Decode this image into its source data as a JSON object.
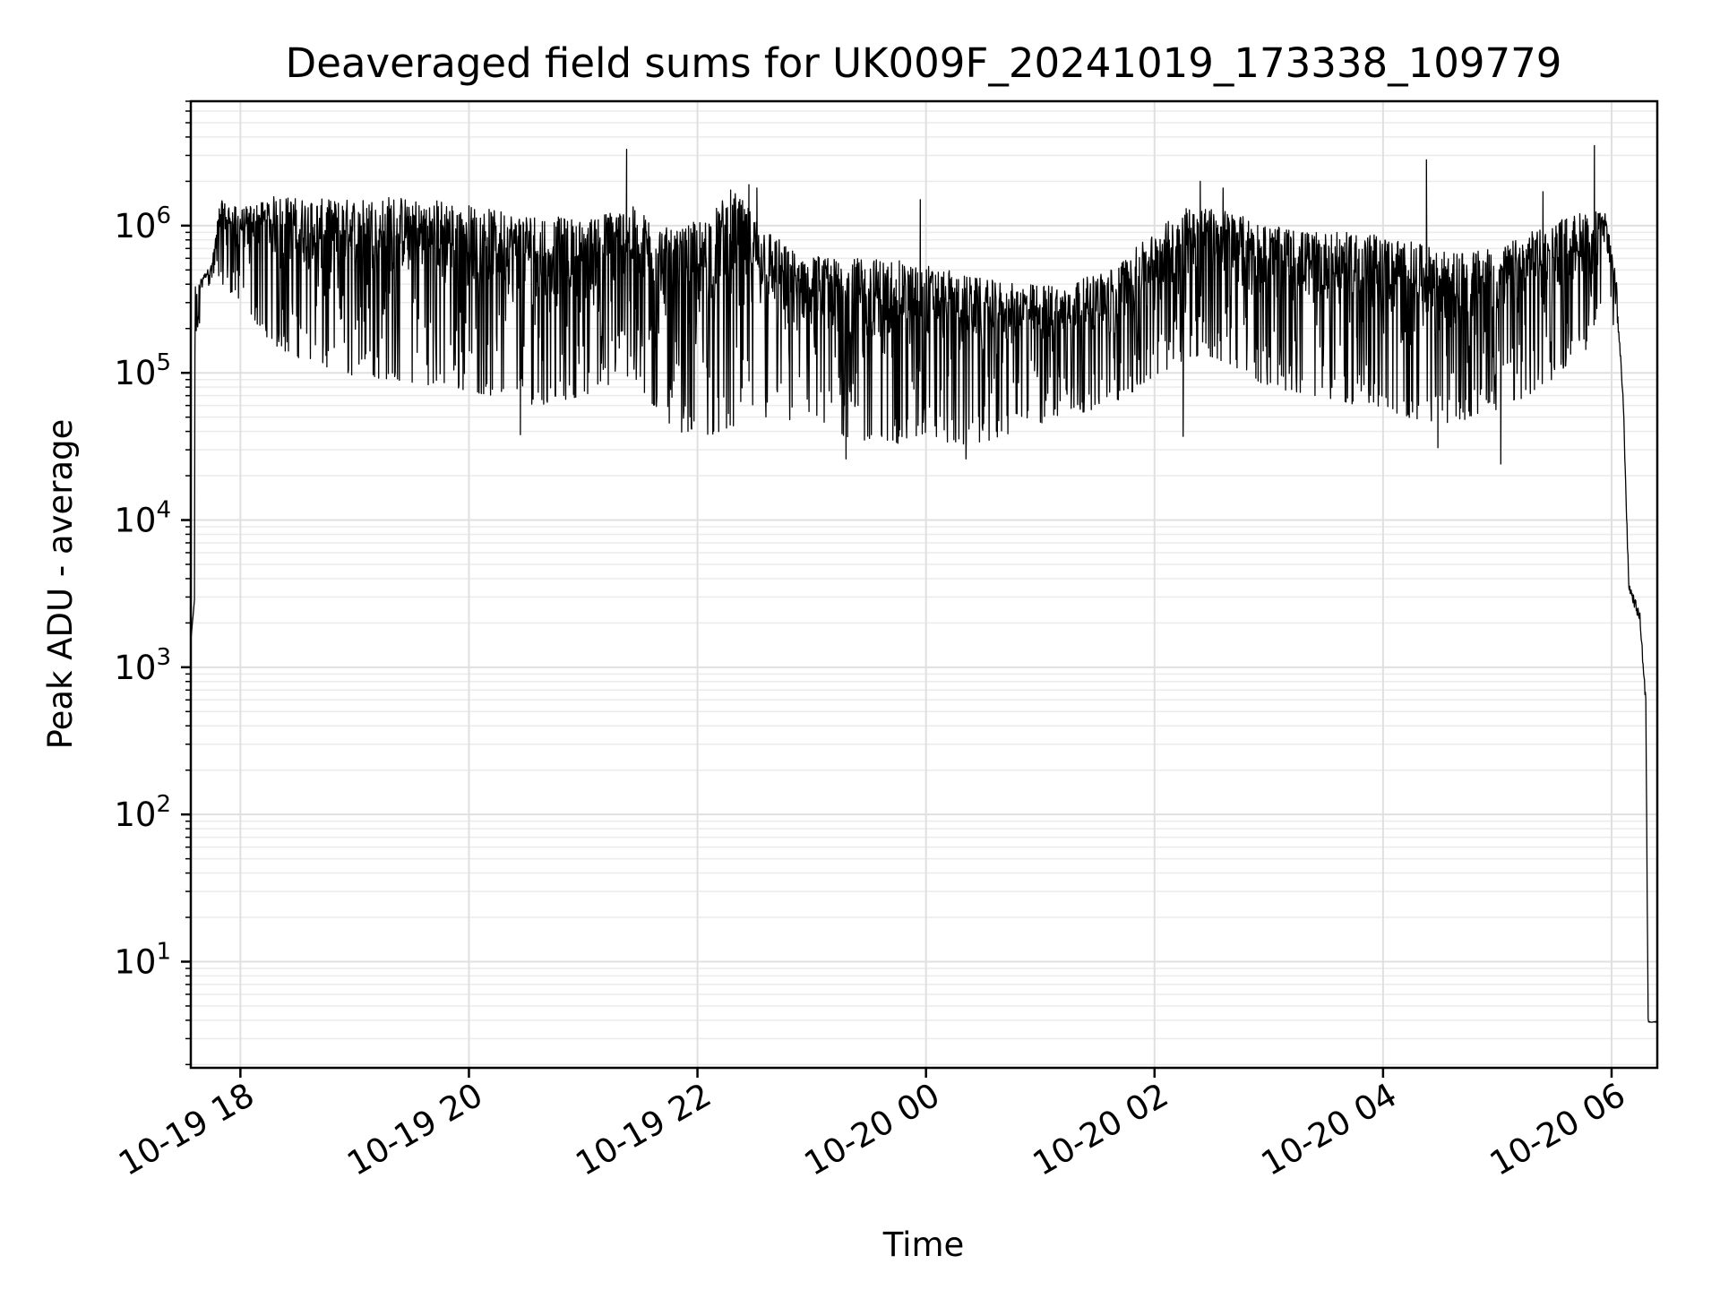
{
  "chart_data": {
    "type": "line",
    "title": "Deaveraged field sums for UK009F_20241019_173338_109779",
    "xlabel": "Time",
    "ylabel": "Peak ADU - average",
    "yscale": "log",
    "ylim": [
      1.9,
      7000000
    ],
    "xlim_hours": [
      17.566,
      30.4
    ],
    "grid": true,
    "line_color": "#000000",
    "background": "#ffffff",
    "x_ticks": [
      {
        "hour": 18,
        "label": "10-19 18"
      },
      {
        "hour": 20,
        "label": "10-19 20"
      },
      {
        "hour": 22,
        "label": "10-19 22"
      },
      {
        "hour": 24,
        "label": "10-20 00"
      },
      {
        "hour": 26,
        "label": "10-20 02"
      },
      {
        "hour": 28,
        "label": "10-20 04"
      },
      {
        "hour": 30,
        "label": "10-20 06"
      }
    ],
    "y_ticks": [
      {
        "base": "10",
        "exp": "1",
        "value": 10
      },
      {
        "base": "10",
        "exp": "2",
        "value": 100
      },
      {
        "base": "10",
        "exp": "3",
        "value": 1000
      },
      {
        "base": "10",
        "exp": "4",
        "value": 10000
      },
      {
        "base": "10",
        "exp": "5",
        "value": 100000
      },
      {
        "base": "10",
        "exp": "6",
        "value": 1000000
      }
    ],
    "series": [
      {
        "name": "Peak ADU - average",
        "envelope": {
          "description": "approximate upper/lower envelope of the dense noisy trace (hour, value)",
          "upper": [
            [
              17.6,
              380000
            ],
            [
              17.75,
              550000
            ],
            [
              17.82,
              1500000
            ],
            [
              18.0,
              1300000
            ],
            [
              18.3,
              1600000
            ],
            [
              18.8,
              1500000
            ],
            [
              19.3,
              1600000
            ],
            [
              19.8,
              1500000
            ],
            [
              20.2,
              1300000
            ],
            [
              20.6,
              1200000
            ],
            [
              21.0,
              1100000
            ],
            [
              21.4,
              1400000
            ],
            [
              21.8,
              900000
            ],
            [
              22.1,
              1200000
            ],
            [
              22.3,
              1800000
            ],
            [
              22.5,
              1200000
            ],
            [
              22.8,
              700000
            ],
            [
              23.2,
              600000
            ],
            [
              23.6,
              600000
            ],
            [
              24.0,
              550000
            ],
            [
              24.4,
              450000
            ],
            [
              24.8,
              400000
            ],
            [
              25.2,
              400000
            ],
            [
              25.6,
              500000
            ],
            [
              26.0,
              900000
            ],
            [
              26.3,
              1400000
            ],
            [
              26.6,
              1300000
            ],
            [
              27.0,
              1000000
            ],
            [
              27.4,
              900000
            ],
            [
              27.8,
              900000
            ],
            [
              28.2,
              800000
            ],
            [
              28.6,
              650000
            ],
            [
              29.0,
              700000
            ],
            [
              29.4,
              1000000
            ],
            [
              29.8,
              1300000
            ],
            [
              29.95,
              1200000
            ],
            [
              30.05,
              400000
            ],
            [
              30.1,
              100000
            ],
            [
              30.15,
              5000
            ],
            [
              30.25,
              3000
            ],
            [
              30.3,
              1000
            ],
            [
              30.32,
              4
            ],
            [
              30.4,
              4
            ]
          ],
          "lower": [
            [
              17.6,
              2900
            ],
            [
              17.65,
              370000
            ],
            [
              17.82,
              420000
            ],
            [
              18.0,
              300000
            ],
            [
              18.3,
              150000
            ],
            [
              18.8,
              100000
            ],
            [
              19.3,
              90000
            ],
            [
              19.8,
              80000
            ],
            [
              20.2,
              70000
            ],
            [
              20.6,
              60000
            ],
            [
              21.0,
              70000
            ],
            [
              21.4,
              90000
            ],
            [
              21.8,
              40000
            ],
            [
              22.1,
              38000
            ],
            [
              22.3,
              40000
            ],
            [
              22.5,
              50000
            ],
            [
              22.8,
              45000
            ],
            [
              23.2,
              38000
            ],
            [
              23.6,
              32000
            ],
            [
              24.0,
              35000
            ],
            [
              24.4,
              32000
            ],
            [
              24.8,
              40000
            ],
            [
              25.2,
              50000
            ],
            [
              25.6,
              60000
            ],
            [
              26.0,
              90000
            ],
            [
              26.3,
              130000
            ],
            [
              26.6,
              120000
            ],
            [
              27.0,
              80000
            ],
            [
              27.4,
              70000
            ],
            [
              27.8,
              60000
            ],
            [
              28.2,
              50000
            ],
            [
              28.6,
              45000
            ],
            [
              29.0,
              55000
            ],
            [
              29.4,
              80000
            ],
            [
              29.8,
              150000
            ],
            [
              29.95,
              400000
            ],
            [
              30.05,
              150000
            ],
            [
              30.1,
              50000
            ],
            [
              30.15,
              2600
            ],
            [
              30.25,
              1500
            ],
            [
              30.3,
              300
            ],
            [
              30.32,
              3.8
            ],
            [
              30.4,
              3.8
            ]
          ]
        },
        "spikes": [
          {
            "hour": 21.38,
            "value": 3300000
          },
          {
            "hour": 22.45,
            "value": 1900000
          },
          {
            "hour": 26.4,
            "value": 2000000
          },
          {
            "hour": 28.38,
            "value": 2800000
          },
          {
            "hour": 29.85,
            "value": 3500000
          },
          {
            "hour": 29.4,
            "value": 1700000
          },
          {
            "hour": 26.6,
            "value": 1800000
          },
          {
            "hour": 22.52,
            "value": 1800000
          },
          {
            "hour": 23.95,
            "value": 1500000
          }
        ],
        "dips": [
          {
            "hour": 20.45,
            "value": 38000
          },
          {
            "hour": 23.3,
            "value": 26000
          },
          {
            "hour": 24.35,
            "value": 26000
          },
          {
            "hour": 26.25,
            "value": 37000
          },
          {
            "hour": 28.48,
            "value": 31000
          },
          {
            "hour": 29.03,
            "value": 24000
          }
        ]
      }
    ]
  }
}
